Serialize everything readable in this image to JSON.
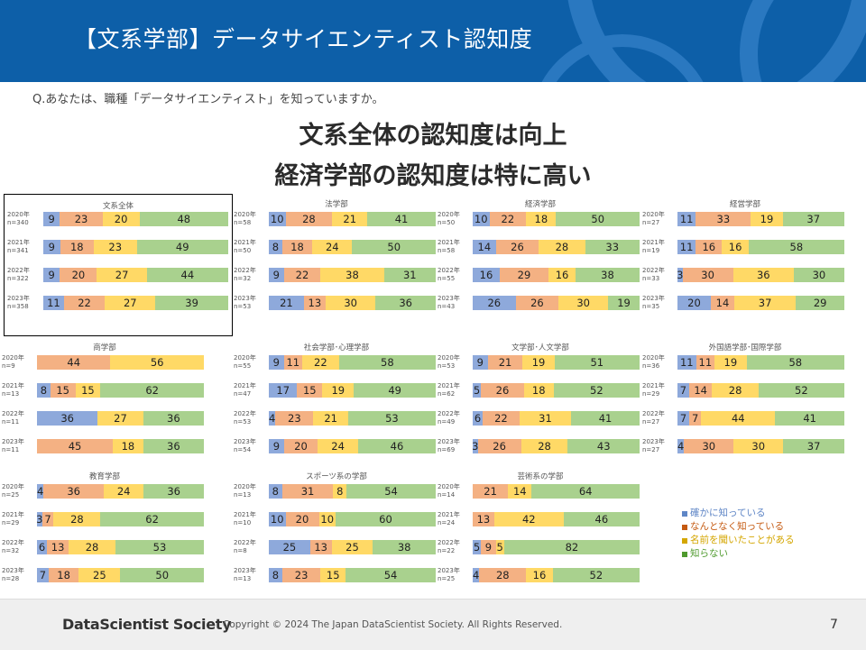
{
  "header": {
    "title": "【文系学部】データサイエンティスト認知度"
  },
  "question": "Q.あなたは、職種「データサイエンティスト」を知っていますか。",
  "headline": {
    "line1": "文系全体の認知度は向上",
    "line2": "経済学部の認知度は特に高い"
  },
  "legend": [
    {
      "label": "確かに知っている",
      "color": "#5f86c6"
    },
    {
      "label": "なんとなく知っている",
      "color": "#c55a11"
    },
    {
      "label": "名前を聞いたことがある",
      "color": "#d4a600"
    },
    {
      "label": "知らない",
      "color": "#4f9a2e"
    }
  ],
  "footer": {
    "logo": "DataScientist Society",
    "copyright": "Copyright © 2024 The Japan DataScientist Society. All Rights Reserved.",
    "page": "7"
  },
  "chart_data": {
    "type": "bar",
    "stacked": true,
    "orientation": "horizontal",
    "series_names": [
      "確かに知っている",
      "なんとなく知っている",
      "名前を聞いたことがある",
      "知らない"
    ],
    "series_colors": [
      "#8ea9db",
      "#f4b183",
      "#ffd966",
      "#a9d18e"
    ],
    "charts": [
      {
        "title": "文系全体",
        "rows": [
          {
            "year": "2020年",
            "n": "n=340",
            "values": [
              9,
              23,
              20,
              48
            ]
          },
          {
            "year": "2021年",
            "n": "n=341",
            "values": [
              9,
              18,
              23,
              49
            ]
          },
          {
            "year": "2022年",
            "n": "n=322",
            "values": [
              9,
              20,
              27,
              44
            ]
          },
          {
            "year": "2023年",
            "n": "n=358",
            "values": [
              11,
              22,
              27,
              39
            ]
          }
        ]
      },
      {
        "title": "法学部",
        "rows": [
          {
            "year": "2020年",
            "n": "n=58",
            "values": [
              10,
              28,
              21,
              41
            ]
          },
          {
            "year": "2021年",
            "n": "n=50",
            "values": [
              8,
              18,
              24,
              50
            ]
          },
          {
            "year": "2022年",
            "n": "n=32",
            "values": [
              9,
              22,
              38,
              31
            ]
          },
          {
            "year": "2023年",
            "n": "n=53",
            "values": [
              21,
              13,
              30,
              36
            ]
          }
        ]
      },
      {
        "title": "経済学部",
        "rows": [
          {
            "year": "2020年",
            "n": "n=50",
            "values": [
              10,
              22,
              18,
              50
            ]
          },
          {
            "year": "2021年",
            "n": "n=58",
            "values": [
              14,
              26,
              28,
              33
            ]
          },
          {
            "year": "2022年",
            "n": "n=55",
            "values": [
              16,
              29,
              16,
              38
            ]
          },
          {
            "year": "2023年",
            "n": "n=43",
            "values": [
              26,
              26,
              30,
              19
            ]
          }
        ]
      },
      {
        "title": "経営学部",
        "rows": [
          {
            "year": "2020年",
            "n": "n=27",
            "values": [
              11,
              33,
              19,
              37
            ]
          },
          {
            "year": "2021年",
            "n": "n=19",
            "values": [
              11,
              16,
              16,
              58
            ]
          },
          {
            "year": "2022年",
            "n": "n=33",
            "values": [
              3,
              30,
              36,
              30
            ]
          },
          {
            "year": "2023年",
            "n": "n=35",
            "values": [
              20,
              14,
              37,
              29
            ]
          }
        ]
      },
      {
        "title": "商学部",
        "rows": [
          {
            "year": "2020年",
            "n": "n=9",
            "values": [
              0,
              44,
              56,
              0
            ]
          },
          {
            "year": "2021年",
            "n": "n=13",
            "values": [
              8,
              15,
              15,
              62
            ]
          },
          {
            "year": "2022年",
            "n": "n=11",
            "values": [
              36,
              0,
              27,
              36
            ]
          },
          {
            "year": "2023年",
            "n": "n=11",
            "values": [
              0,
              45,
              18,
              36
            ]
          }
        ]
      },
      {
        "title": "社会学部･心理学部",
        "rows": [
          {
            "year": "2020年",
            "n": "n=55",
            "values": [
              9,
              11,
              22,
              58
            ]
          },
          {
            "year": "2021年",
            "n": "n=47",
            "values": [
              17,
              15,
              19,
              49
            ]
          },
          {
            "year": "2022年",
            "n": "n=53",
            "values": [
              4,
              23,
              21,
              53
            ]
          },
          {
            "year": "2023年",
            "n": "n=54",
            "values": [
              9,
              20,
              24,
              46
            ]
          }
        ]
      },
      {
        "title": "文学部･人文学部",
        "rows": [
          {
            "year": "2020年",
            "n": "n=53",
            "values": [
              9,
              21,
              19,
              51
            ]
          },
          {
            "year": "2021年",
            "n": "n=62",
            "values": [
              5,
              26,
              18,
              52
            ]
          },
          {
            "year": "2022年",
            "n": "n=49",
            "values": [
              6,
              22,
              31,
              41
            ]
          },
          {
            "year": "2023年",
            "n": "n=69",
            "values": [
              3,
              26,
              28,
              43
            ]
          }
        ]
      },
      {
        "title": "外国語学部･国際学部",
        "rows": [
          {
            "year": "2020年",
            "n": "n=36",
            "values": [
              11,
              11,
              19,
              58
            ]
          },
          {
            "year": "2021年",
            "n": "n=29",
            "values": [
              7,
              14,
              28,
              52
            ]
          },
          {
            "year": "2022年",
            "n": "n=27",
            "values": [
              7,
              7,
              44,
              41
            ]
          },
          {
            "year": "2023年",
            "n": "n=27",
            "values": [
              4,
              30,
              30,
              37
            ]
          }
        ]
      },
      {
        "title": "教育学部",
        "rows": [
          {
            "year": "2020年",
            "n": "n=25",
            "values": [
              4,
              36,
              24,
              36
            ]
          },
          {
            "year": "2021年",
            "n": "n=29",
            "values": [
              3,
              7,
              28,
              62
            ]
          },
          {
            "year": "2022年",
            "n": "n=32",
            "values": [
              6,
              13,
              28,
              53
            ]
          },
          {
            "year": "2023年",
            "n": "n=28",
            "values": [
              7,
              18,
              25,
              50
            ]
          }
        ]
      },
      {
        "title": "スポーツ系の学部",
        "rows": [
          {
            "year": "2020年",
            "n": "n=13",
            "values": [
              8,
              31,
              8,
              54
            ]
          },
          {
            "year": "2021年",
            "n": "n=10",
            "values": [
              10,
              20,
              10,
              60
            ]
          },
          {
            "year": "2022年",
            "n": "n=8",
            "values": [
              25,
              13,
              25,
              38
            ]
          },
          {
            "year": "2023年",
            "n": "n=13",
            "values": [
              8,
              23,
              15,
              54
            ]
          }
        ]
      },
      {
        "title": "芸術系の学部",
        "rows": [
          {
            "year": "2020年",
            "n": "n=14",
            "values": [
              0,
              21,
              14,
              64
            ]
          },
          {
            "year": "2021年",
            "n": "n=24",
            "values": [
              0,
              13,
              42,
              46
            ]
          },
          {
            "year": "2022年",
            "n": "n=22",
            "values": [
              5,
              9,
              5,
              82
            ]
          },
          {
            "year": "2023年",
            "n": "n=25",
            "values": [
              4,
              28,
              16,
              52
            ]
          }
        ]
      }
    ]
  }
}
